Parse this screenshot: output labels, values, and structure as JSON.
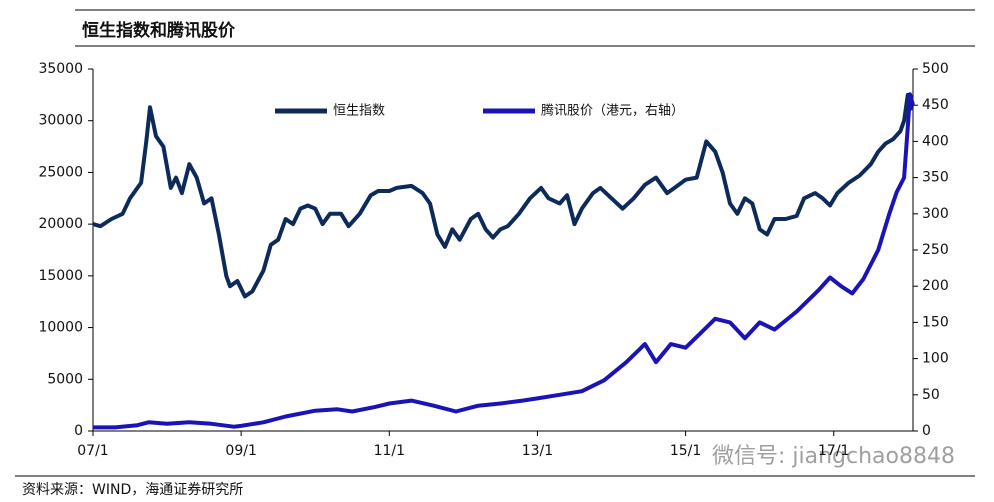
{
  "chart_data": {
    "type": "line",
    "title": "恒生指数和腾讯股价",
    "source": "资料来源：WIND，海通证券研究所",
    "watermark": "微信号: jiangchao8848",
    "xlim": [
      2007,
      2018.07
    ],
    "xticks": [
      {
        "value": 2007,
        "label": "07/1"
      },
      {
        "value": 2009,
        "label": "09/1"
      },
      {
        "value": 2011,
        "label": "11/1"
      },
      {
        "value": 2013,
        "label": "13/1"
      },
      {
        "value": 2015,
        "label": "15/1"
      },
      {
        "value": 2017,
        "label": "17/1"
      }
    ],
    "ylim": [
      0,
      35000
    ],
    "yticks": [
      0,
      5000,
      10000,
      15000,
      20000,
      25000,
      30000,
      35000
    ],
    "y2lim": [
      0,
      500
    ],
    "y2ticks": [
      0,
      50,
      100,
      150,
      200,
      250,
      300,
      350,
      400,
      450,
      500
    ],
    "legend": "top",
    "series": [
      {
        "name": "恒生指数",
        "color": "#0d2a5a",
        "axis": "y",
        "x": [
          2007.0,
          2007.1,
          2007.25,
          2007.4,
          2007.5,
          2007.6,
          2007.65,
          2007.72,
          2007.77,
          2007.85,
          2007.95,
          2008.05,
          2008.12,
          2008.2,
          2008.3,
          2008.4,
          2008.5,
          2008.6,
          2008.7,
          2008.8,
          2008.85,
          2008.95,
          2009.05,
          2009.15,
          2009.3,
          2009.4,
          2009.5,
          2009.6,
          2009.7,
          2009.8,
          2009.9,
          2010.0,
          2010.1,
          2010.2,
          2010.35,
          2010.45,
          2010.6,
          2010.75,
          2010.85,
          2011.0,
          2011.1,
          2011.3,
          2011.45,
          2011.55,
          2011.65,
          2011.75,
          2011.85,
          2011.95,
          2012.1,
          2012.2,
          2012.3,
          2012.4,
          2012.5,
          2012.6,
          2012.75,
          2012.9,
          2013.05,
          2013.15,
          2013.3,
          2013.4,
          2013.5,
          2013.6,
          2013.75,
          2013.85,
          2014.0,
          2014.15,
          2014.3,
          2014.45,
          2014.6,
          2014.75,
          2014.85,
          2015.0,
          2015.15,
          2015.28,
          2015.4,
          2015.5,
          2015.6,
          2015.7,
          2015.8,
          2015.9,
          2016.0,
          2016.1,
          2016.2,
          2016.35,
          2016.5,
          2016.6,
          2016.75,
          2016.85,
          2016.95,
          2017.05,
          2017.2,
          2017.35,
          2017.5,
          2017.6,
          2017.7,
          2017.8,
          2017.9,
          2017.95,
          2018.0,
          2018.05
        ],
        "values": [
          20000,
          19800,
          20500,
          21000,
          22500,
          23500,
          24000,
          28000,
          31300,
          28500,
          27500,
          23500,
          24500,
          23000,
          25800,
          24500,
          22000,
          22500,
          19000,
          15000,
          14000,
          14500,
          13000,
          13500,
          15500,
          18000,
          18500,
          20500,
          20000,
          21500,
          21800,
          21500,
          20000,
          21000,
          21000,
          19800,
          21000,
          22800,
          23200,
          23200,
          23500,
          23700,
          23000,
          22000,
          19000,
          17800,
          19500,
          18500,
          20500,
          21000,
          19500,
          18700,
          19500,
          19800,
          21000,
          22500,
          23500,
          22500,
          22000,
          22800,
          20000,
          21500,
          23000,
          23500,
          22500,
          21500,
          22500,
          23800,
          24500,
          23000,
          23500,
          24300,
          24500,
          28000,
          27000,
          25000,
          22000,
          21000,
          22500,
          22000,
          19500,
          19000,
          20500,
          20500,
          20800,
          22500,
          23000,
          22500,
          21800,
          23000,
          24000,
          24700,
          25800,
          27000,
          27800,
          28200,
          29000,
          30000,
          32500,
          31000
        ]
      },
      {
        "name": "腾讯股价（港元，右轴）",
        "color": "#1a14b8",
        "axis": "y2",
        "x": [
          2007.0,
          2007.3,
          2007.6,
          2007.75,
          2008.0,
          2008.3,
          2008.6,
          2008.9,
          2009.0,
          2009.3,
          2009.6,
          2010.0,
          2010.3,
          2010.5,
          2010.8,
          2011.0,
          2011.3,
          2011.6,
          2011.9,
          2012.2,
          2012.5,
          2012.8,
          2013.0,
          2013.3,
          2013.6,
          2013.9,
          2014.2,
          2014.45,
          2014.6,
          2014.8,
          2015.0,
          2015.2,
          2015.4,
          2015.6,
          2015.8,
          2016.0,
          2016.2,
          2016.5,
          2016.8,
          2016.95,
          2017.1,
          2017.25,
          2017.4,
          2017.6,
          2017.75,
          2017.85,
          2017.95,
          2018.0,
          2018.03,
          2018.07
        ],
        "values": [
          5,
          5,
          8,
          12,
          10,
          12,
          10,
          6,
          7,
          12,
          20,
          28,
          30,
          27,
          33,
          38,
          42,
          35,
          27,
          35,
          38,
          42,
          45,
          50,
          55,
          70,
          95,
          120,
          95,
          120,
          115,
          135,
          155,
          150,
          128,
          150,
          140,
          165,
          195,
          212,
          200,
          190,
          210,
          250,
          300,
          330,
          350,
          420,
          465,
          450
        ]
      }
    ]
  }
}
